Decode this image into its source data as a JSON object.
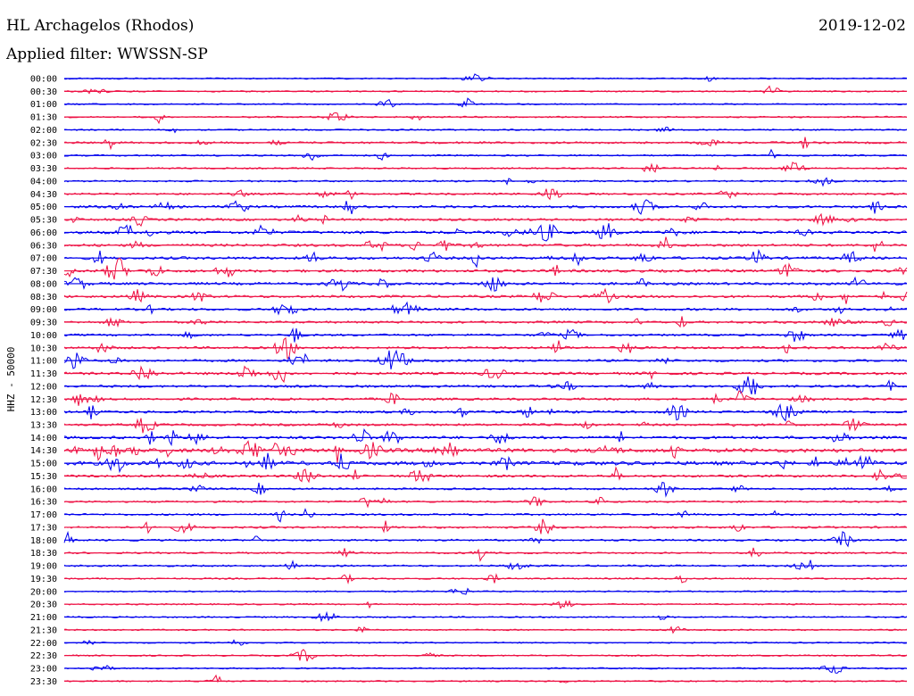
{
  "header": {
    "station": "HL Archagelos (Rhodos)",
    "date": "2019-12-02",
    "filter": "Applied filter: WWSSN-SP"
  },
  "colors": {
    "odd_trace": "#0000ee",
    "even_trace": "#ee1144",
    "text": "#000000",
    "background": "#ffffff"
  },
  "chart_data": {
    "type": "line",
    "title": "HL Archagelos (Rhodos)",
    "ylabel": "HHZ - 50000",
    "xlabel": "",
    "traces": [
      "00:00",
      "00:30",
      "01:00",
      "01:30",
      "02:00",
      "02:30",
      "03:00",
      "03:30",
      "04:00",
      "04:30",
      "05:00",
      "05:30",
      "06:00",
      "06:30",
      "07:00",
      "07:30",
      "08:00",
      "08:30",
      "09:00",
      "09:30",
      "10:00",
      "10:30",
      "11:00",
      "11:30",
      "12:00",
      "12:30",
      "13:00",
      "13:30",
      "14:00",
      "14:30",
      "15:00",
      "15:30",
      "16:00",
      "16:30",
      "17:00",
      "17:30",
      "18:00",
      "18:30",
      "19:00",
      "19:30",
      "20:00",
      "20:30",
      "21:00",
      "21:30",
      "22:00",
      "22:30",
      "23:00",
      "23:30"
    ],
    "activity_level": [
      0.08,
      0.09,
      0.08,
      0.12,
      0.1,
      0.25,
      0.14,
      0.12,
      0.15,
      0.22,
      0.35,
      0.32,
      0.45,
      0.38,
      0.42,
      0.42,
      0.38,
      0.36,
      0.32,
      0.3,
      0.26,
      0.32,
      0.32,
      0.36,
      0.32,
      0.32,
      0.35,
      0.3,
      0.42,
      0.72,
      0.68,
      0.32,
      0.22,
      0.2,
      0.2,
      0.24,
      0.2,
      0.16,
      0.18,
      0.12,
      0.1,
      0.1,
      0.09,
      0.09,
      0.08,
      0.09,
      0.1,
      0.09
    ],
    "grid": false,
    "legend": "none"
  }
}
